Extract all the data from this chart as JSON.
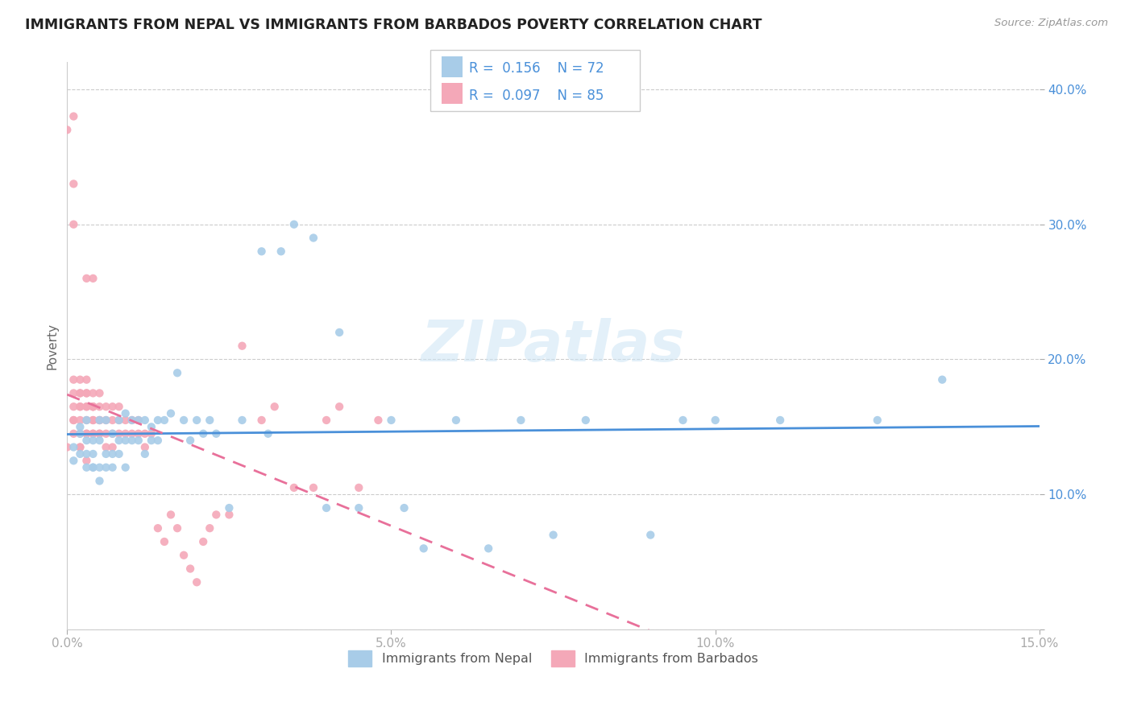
{
  "title": "IMMIGRANTS FROM NEPAL VS IMMIGRANTS FROM BARBADOS POVERTY CORRELATION CHART",
  "source": "Source: ZipAtlas.com",
  "ylabel": "Poverty",
  "xlim": [
    0.0,
    0.15
  ],
  "ylim": [
    0.0,
    0.42
  ],
  "nepal_R": 0.156,
  "nepal_N": 72,
  "barbados_R": 0.097,
  "barbados_N": 85,
  "nepal_color": "#a8cce8",
  "barbados_color": "#f4a8b8",
  "trendline_nepal_color": "#4a90d9",
  "trendline_barbados_color": "#e8709a",
  "legend_label_nepal": "Immigrants from Nepal",
  "legend_label_barbados": "Immigrants from Barbados",
  "watermark": "ZIPatlas",
  "nepal_x": [
    0.001,
    0.001,
    0.002,
    0.002,
    0.002,
    0.003,
    0.003,
    0.003,
    0.003,
    0.004,
    0.004,
    0.004,
    0.004,
    0.005,
    0.005,
    0.005,
    0.005,
    0.006,
    0.006,
    0.006,
    0.007,
    0.007,
    0.007,
    0.008,
    0.008,
    0.008,
    0.009,
    0.009,
    0.009,
    0.01,
    0.01,
    0.011,
    0.011,
    0.012,
    0.012,
    0.013,
    0.013,
    0.014,
    0.014,
    0.015,
    0.016,
    0.017,
    0.018,
    0.019,
    0.02,
    0.021,
    0.022,
    0.023,
    0.025,
    0.027,
    0.03,
    0.031,
    0.033,
    0.035,
    0.038,
    0.04,
    0.042,
    0.045,
    0.05,
    0.052,
    0.055,
    0.06,
    0.065,
    0.07,
    0.075,
    0.08,
    0.09,
    0.095,
    0.1,
    0.11,
    0.125,
    0.135
  ],
  "nepal_y": [
    0.135,
    0.125,
    0.145,
    0.13,
    0.15,
    0.12,
    0.14,
    0.13,
    0.155,
    0.12,
    0.14,
    0.13,
    0.12,
    0.14,
    0.12,
    0.11,
    0.155,
    0.13,
    0.12,
    0.155,
    0.13,
    0.145,
    0.12,
    0.155,
    0.14,
    0.13,
    0.14,
    0.16,
    0.12,
    0.155,
    0.14,
    0.155,
    0.14,
    0.155,
    0.13,
    0.15,
    0.14,
    0.155,
    0.14,
    0.155,
    0.16,
    0.19,
    0.155,
    0.14,
    0.155,
    0.145,
    0.155,
    0.145,
    0.09,
    0.155,
    0.28,
    0.145,
    0.28,
    0.3,
    0.29,
    0.09,
    0.22,
    0.09,
    0.155,
    0.09,
    0.06,
    0.155,
    0.06,
    0.155,
    0.07,
    0.155,
    0.07,
    0.155,
    0.155,
    0.155,
    0.155,
    0.185
  ],
  "barbados_x": [
    0.0,
    0.0,
    0.001,
    0.001,
    0.001,
    0.001,
    0.001,
    0.001,
    0.001,
    0.002,
    0.002,
    0.002,
    0.002,
    0.002,
    0.002,
    0.002,
    0.003,
    0.003,
    0.003,
    0.003,
    0.003,
    0.003,
    0.003,
    0.003,
    0.003,
    0.004,
    0.004,
    0.004,
    0.004,
    0.004,
    0.004,
    0.004,
    0.004,
    0.004,
    0.005,
    0.005,
    0.005,
    0.005,
    0.005,
    0.005,
    0.006,
    0.006,
    0.006,
    0.006,
    0.007,
    0.007,
    0.007,
    0.007,
    0.008,
    0.008,
    0.008,
    0.009,
    0.009,
    0.01,
    0.01,
    0.011,
    0.011,
    0.012,
    0.012,
    0.013,
    0.014,
    0.015,
    0.016,
    0.017,
    0.018,
    0.019,
    0.02,
    0.021,
    0.022,
    0.023,
    0.025,
    0.027,
    0.03,
    0.032,
    0.035,
    0.038,
    0.04,
    0.042,
    0.045,
    0.048,
    0.001,
    0.001,
    0.002,
    0.002,
    0.003
  ],
  "barbados_y": [
    0.135,
    0.37,
    0.3,
    0.145,
    0.155,
    0.165,
    0.155,
    0.175,
    0.185,
    0.165,
    0.175,
    0.185,
    0.145,
    0.155,
    0.175,
    0.165,
    0.26,
    0.145,
    0.175,
    0.165,
    0.145,
    0.155,
    0.175,
    0.165,
    0.185,
    0.155,
    0.165,
    0.26,
    0.145,
    0.165,
    0.145,
    0.155,
    0.165,
    0.175,
    0.155,
    0.155,
    0.145,
    0.165,
    0.175,
    0.145,
    0.135,
    0.145,
    0.155,
    0.165,
    0.135,
    0.145,
    0.155,
    0.165,
    0.145,
    0.155,
    0.165,
    0.145,
    0.155,
    0.145,
    0.155,
    0.145,
    0.155,
    0.145,
    0.135,
    0.145,
    0.075,
    0.065,
    0.085,
    0.075,
    0.055,
    0.045,
    0.035,
    0.065,
    0.075,
    0.085,
    0.085,
    0.21,
    0.155,
    0.165,
    0.105,
    0.105,
    0.155,
    0.165,
    0.105,
    0.155,
    0.38,
    0.33,
    0.135,
    0.135,
    0.125
  ]
}
